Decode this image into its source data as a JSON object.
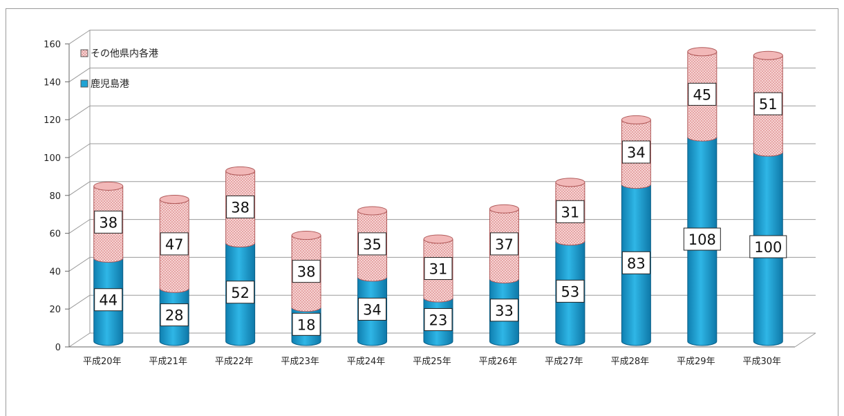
{
  "chart_data": {
    "type": "bar",
    "stacked": true,
    "style": "3d-cylinder",
    "categories": [
      "平成20年",
      "平成21年",
      "平成22年",
      "平成23年",
      "平成24年",
      "平成25年",
      "平成26年",
      "平成27年",
      "平成28年",
      "平成29年",
      "平成30年"
    ],
    "series": [
      {
        "name": "鹿児島港",
        "color": "#1fa3d4",
        "values": [
          44,
          28,
          52,
          18,
          34,
          23,
          33,
          53,
          83,
          108,
          100
        ]
      },
      {
        "name": "その他県内各港",
        "color": "#f3c3c3",
        "values": [
          38,
          47,
          38,
          38,
          35,
          31,
          37,
          31,
          34,
          45,
          51
        ]
      }
    ],
    "ylim": [
      0,
      160
    ],
    "yticks": [
      "0",
      "20",
      "40",
      "60",
      "80",
      "100",
      "120",
      "140",
      "160"
    ],
    "grid": true,
    "legend_position": "top-left",
    "data_labels": true
  }
}
